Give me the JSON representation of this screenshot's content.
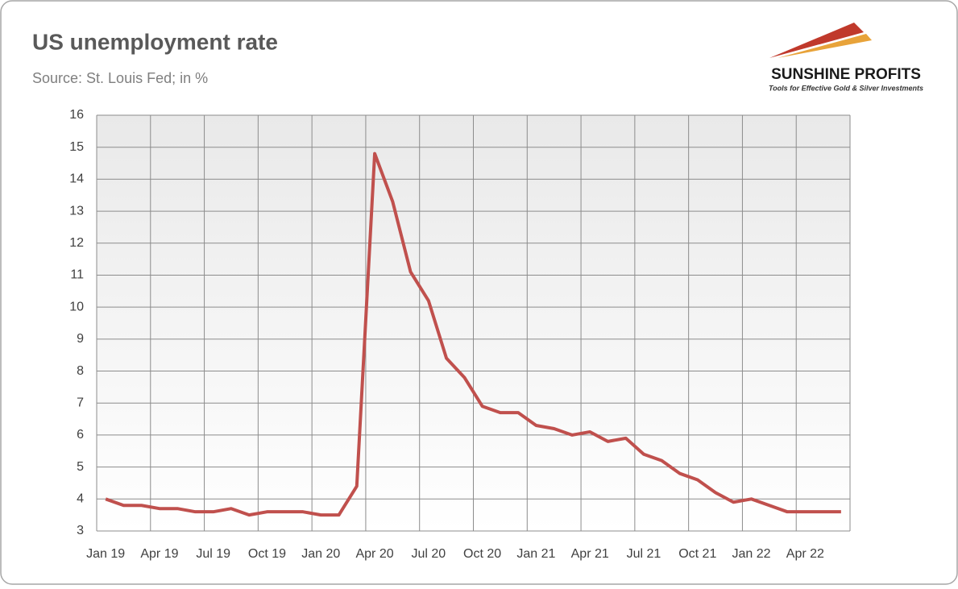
{
  "chart_data": {
    "type": "line",
    "title": "US unemployment rate",
    "subtitle": "Source: St. Louis Fed; in %",
    "categories": [
      "Jan 19",
      null,
      null,
      "Apr 19",
      null,
      null,
      "Jul 19",
      null,
      null,
      "Oct 19",
      null,
      null,
      "Jan 20",
      null,
      null,
      "Apr 20",
      null,
      null,
      "Jul 20",
      null,
      null,
      "Oct 20",
      null,
      null,
      "Jan 21",
      null,
      null,
      "Apr 21",
      null,
      null,
      "Jul 21",
      null,
      null,
      "Oct 21",
      null,
      null,
      "Jan 22",
      null,
      null,
      "Apr 22",
      null,
      null
    ],
    "series": [
      {
        "name": "US unemployment rate",
        "color": "#c0504d",
        "values": [
          4.0,
          3.8,
          3.8,
          3.7,
          3.7,
          3.6,
          3.6,
          3.7,
          3.5,
          3.6,
          3.6,
          3.6,
          3.5,
          3.5,
          4.4,
          14.8,
          13.3,
          11.1,
          10.2,
          8.4,
          7.8,
          6.9,
          6.7,
          6.7,
          6.3,
          6.2,
          6.0,
          6.1,
          5.8,
          5.9,
          5.4,
          5.2,
          4.8,
          4.6,
          4.2,
          3.9,
          4.0,
          3.8,
          3.6,
          3.6,
          3.6,
          3.6
        ]
      }
    ],
    "ylim": [
      3,
      16
    ],
    "yticks": [
      3,
      4,
      5,
      6,
      7,
      8,
      9,
      10,
      11,
      12,
      13,
      14,
      15,
      16
    ],
    "grid": true
  },
  "logo": {
    "name": "SUNSHINE PROFITS",
    "tagline": "Tools for Effective Gold & Silver Investments"
  }
}
